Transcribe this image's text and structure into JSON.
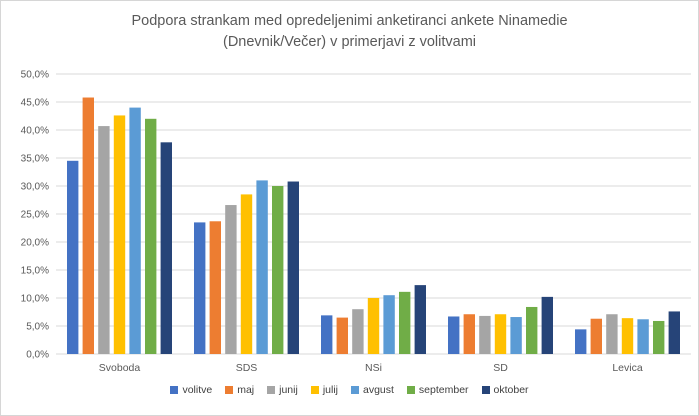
{
  "chart_data": {
    "type": "bar",
    "title": "Podpora strankam med opredeljenimi anketiranci ankete Ninamedie (Dnevnik/Večer) v primerjavi z volitvami",
    "title_lines": {
      "0": "Podpora strankam med opredeljenimi anketiranci ankete Ninamedie",
      "1": "(Dnevnik/Večer) v primerjavi z volitvami"
    },
    "categories": [
      "Svoboda",
      "SDS",
      "NSi",
      "SD",
      "Levica"
    ],
    "series": [
      {
        "name": "volitve",
        "color": "#4472C4",
        "values": [
          34.5,
          23.5,
          6.9,
          6.7,
          4.4
        ]
      },
      {
        "name": "maj",
        "color": "#ED7D31",
        "values": [
          45.8,
          23.7,
          6.5,
          7.1,
          6.3
        ]
      },
      {
        "name": "junij",
        "color": "#A5A5A5",
        "values": [
          40.7,
          26.6,
          8.0,
          6.8,
          7.1
        ]
      },
      {
        "name": "julij",
        "color": "#FFC000",
        "values": [
          42.6,
          28.5,
          10.0,
          7.1,
          6.4
        ]
      },
      {
        "name": "avgust",
        "color": "#5B9BD5",
        "values": [
          44.0,
          31.0,
          10.5,
          6.6,
          6.2
        ]
      },
      {
        "name": "september",
        "color": "#70AD47",
        "values": [
          42.0,
          30.0,
          11.1,
          8.4,
          5.9
        ]
      },
      {
        "name": "oktober",
        "color": "#264478",
        "values": [
          37.8,
          30.8,
          12.3,
          10.2,
          7.6
        ]
      }
    ],
    "ylim": [
      0,
      50
    ],
    "ytick_step": 5,
    "ytick_labels": [
      "0,0%",
      "5,0%",
      "10,0%",
      "15,0%",
      "20,0%",
      "25,0%",
      "30,0%",
      "35,0%",
      "40,0%",
      "45,0%",
      "50,0%"
    ],
    "grid": true,
    "legend_position": "bottom",
    "gridline_color": "#D9D9D9",
    "axis_text_color": "#595959"
  }
}
